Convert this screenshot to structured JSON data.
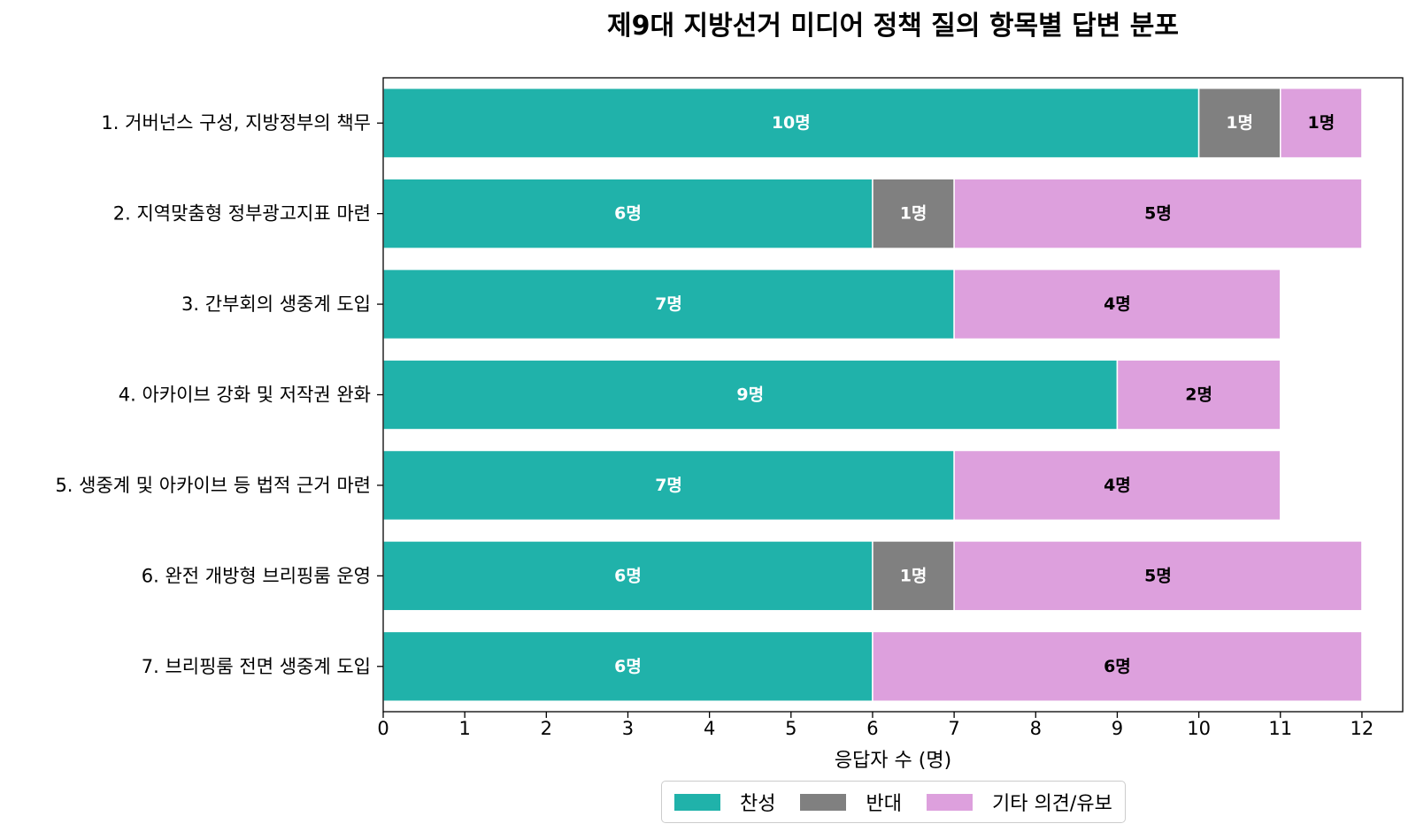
{
  "chart_data": {
    "type": "bar",
    "orientation": "horizontal",
    "stacked": true,
    "title": "제9대 지방선거 미디어 정책 질의 항목별 답변 분포",
    "xlabel": "응답자 수 (명)",
    "ylabel": "",
    "xlim": [
      0,
      12.5
    ],
    "xticks": [
      "0",
      "1",
      "2",
      "3",
      "4",
      "5",
      "6",
      "7",
      "8",
      "9",
      "10",
      "11",
      "12"
    ],
    "categories": [
      "1. 거버넌스 구성, 지방정부의 책무",
      "2. 지역맞춤형 정부광고지표 마련",
      "3. 간부회의 생중계 도입",
      "4. 아카이브 강화 및 저작권 완화",
      "5. 생중계 및 아카이브 등 법적 근거 마련",
      "6. 완전 개방형 브리핑룸 운영",
      "7. 브리핑룸 전면 생중계 도입"
    ],
    "series": [
      {
        "name": "찬성",
        "color": "#20b2aa",
        "label_color": "#ffffff",
        "values": [
          10,
          6,
          7,
          9,
          7,
          6,
          6
        ]
      },
      {
        "name": "반대",
        "color": "#808080",
        "label_color": "#ffffff",
        "values": [
          1,
          1,
          0,
          0,
          0,
          1,
          0
        ]
      },
      {
        "name": "기타 의견/유보",
        "color": "#dda0dd",
        "label_color": "#000000",
        "values": [
          1,
          5,
          4,
          2,
          4,
          5,
          6
        ]
      }
    ],
    "value_label_suffix": "명",
    "legend_position": "bottom-center",
    "grid": false
  }
}
